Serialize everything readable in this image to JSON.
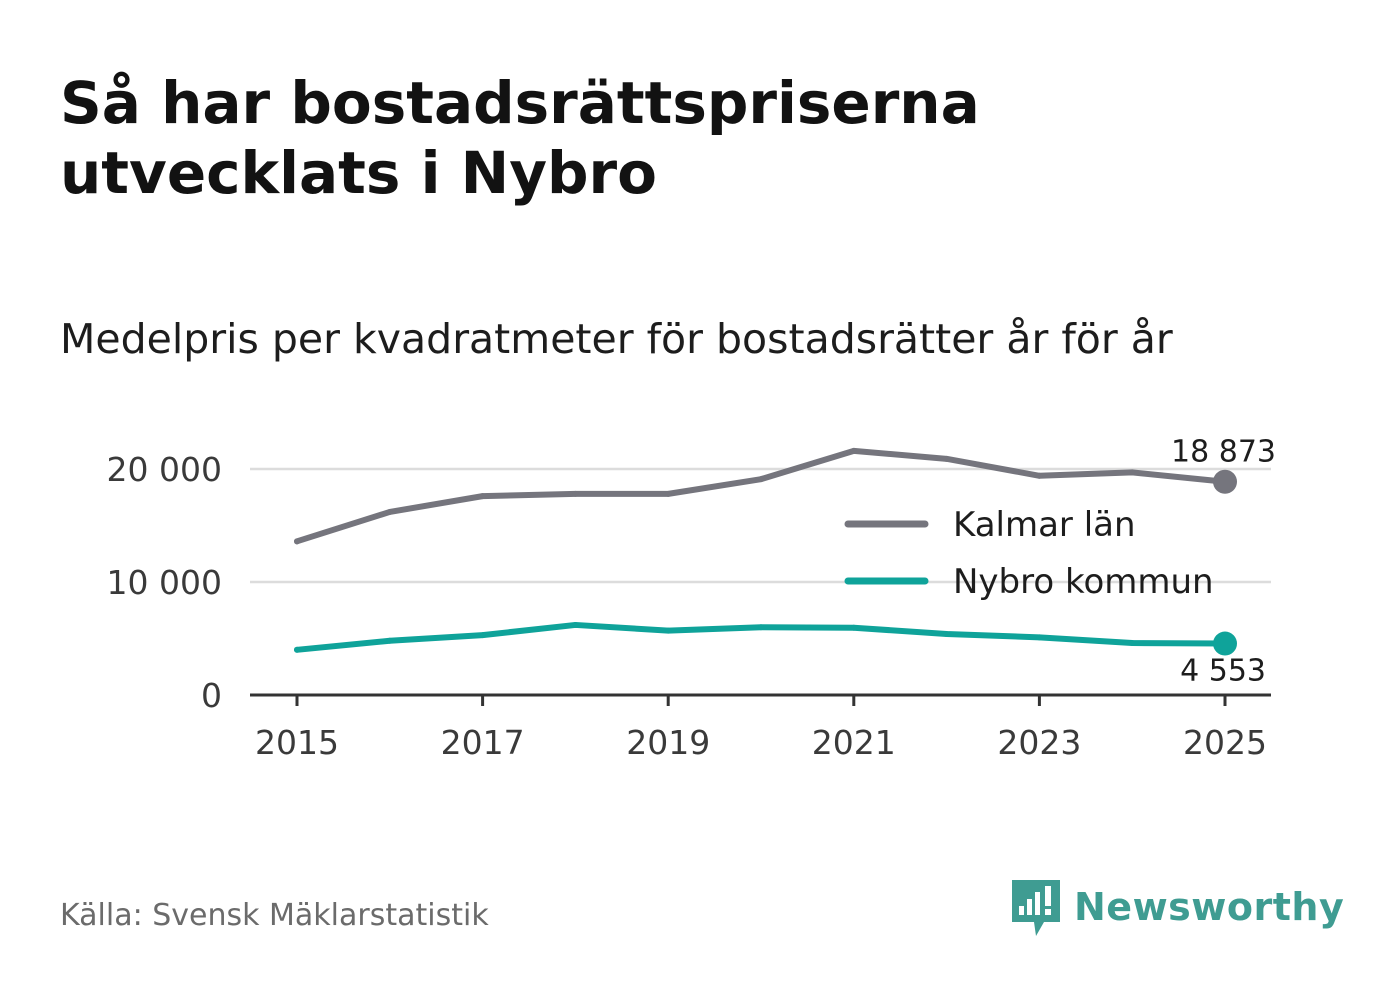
{
  "title": "Så har bostadsrättspriserna utvecklats i Nybro",
  "subtitle": "Medelpris per kvadratmeter för bostadsrätter år för år",
  "source": "Källa: Svensk Mäklarstatistik",
  "brand": {
    "name": "Newsworthy",
    "icon": "newsworthy-logo-icon",
    "color": "#3f9c92"
  },
  "chart_data": {
    "type": "line",
    "title": "Så har bostadsrättspriserna utvecklats i Nybro",
    "xlabel": "",
    "ylabel": "",
    "x": [
      2015,
      2016,
      2017,
      2018,
      2019,
      2020,
      2021,
      2022,
      2023,
      2024,
      2025
    ],
    "xticks": [
      "2015",
      "2017",
      "2019",
      "2021",
      "2023",
      "2025"
    ],
    "yticks": [
      "0",
      "10 000",
      "20 000"
    ],
    "ylim": [
      0,
      22000
    ],
    "grid": true,
    "legend_position": "right",
    "series": [
      {
        "name": "Kalmar län",
        "color": "#75757d",
        "values": [
          13600,
          16200,
          17600,
          17800,
          17800,
          19100,
          21600,
          20900,
          19400,
          19700,
          18873
        ],
        "end_label": "18 873"
      },
      {
        "name": "Nybro kommun",
        "color": "#0fa39a",
        "values": [
          4000,
          4800,
          5300,
          6200,
          5700,
          6000,
          5950,
          5400,
          5100,
          4600,
          4553
        ],
        "end_label": "4 553"
      }
    ]
  }
}
